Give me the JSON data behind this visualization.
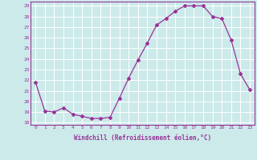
{
  "x": [
    0,
    1,
    2,
    3,
    4,
    5,
    6,
    7,
    8,
    9,
    10,
    11,
    12,
    13,
    14,
    15,
    16,
    17,
    18,
    19,
    20,
    21,
    22,
    23
  ],
  "y": [
    21.8,
    19.1,
    19.0,
    19.4,
    18.8,
    18.6,
    18.4,
    18.4,
    18.5,
    20.3,
    22.2,
    23.9,
    25.5,
    27.2,
    27.8,
    28.5,
    29.0,
    29.0,
    29.0,
    28.0,
    27.8,
    25.8,
    22.6,
    21.1
  ],
  "line_color": "#993399",
  "marker": "D",
  "marker_size": 2.0,
  "bg_color": "#cceaea",
  "grid_color": "#ffffff",
  "xlabel": "Windchill (Refroidissement éolien,°C)",
  "xlabel_color": "#993399",
  "tick_color": "#993399",
  "ylim": [
    17.8,
    29.4
  ],
  "yticks": [
    18,
    19,
    20,
    21,
    22,
    23,
    24,
    25,
    26,
    27,
    28,
    29
  ],
  "xticks": [
    0,
    1,
    2,
    3,
    4,
    5,
    6,
    7,
    8,
    9,
    10,
    11,
    12,
    13,
    14,
    15,
    16,
    17,
    18,
    19,
    20,
    21,
    22,
    23
  ],
  "spine_color": "#993399",
  "axis_linewidth": 0.8
}
